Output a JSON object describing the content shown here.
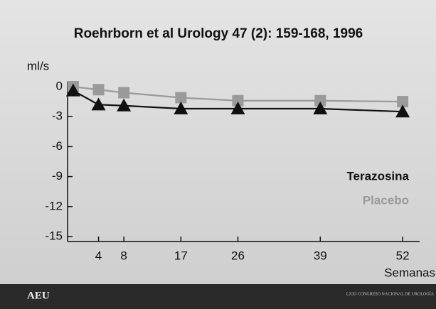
{
  "chart_data": {
    "type": "line",
    "title": "Roehrborn et al Urology 47 (2): 159-168, 1996",
    "y_label": "ml/s",
    "x_label": "Semanas",
    "x": [
      0,
      4,
      8,
      17,
      26,
      39,
      52
    ],
    "series": [
      {
        "name": "Terazosina",
        "color": "#111111",
        "marker": "triangle",
        "values": [
          -0.4,
          -1.8,
          -1.9,
          -2.2,
          -2.2,
          -2.2,
          -2.5
        ]
      },
      {
        "name": "Placebo",
        "color": "#9a9a9a",
        "marker": "square",
        "values": [
          0,
          -0.3,
          -0.6,
          -1.1,
          -1.4,
          -1.4,
          -1.5
        ]
      }
    ],
    "xlim": [
      -1,
      53
    ],
    "xticks": [
      4,
      8,
      17,
      26,
      39,
      52
    ],
    "ylim": [
      -15.5,
      0.5
    ],
    "yticks": [
      0,
      -3,
      -6,
      -9,
      -12,
      -15
    ],
    "legend": "right",
    "footer": {
      "logo": "AEU",
      "congress": "LXXI CONGRESO NACIONAL DE UROLOGÍA"
    }
  }
}
